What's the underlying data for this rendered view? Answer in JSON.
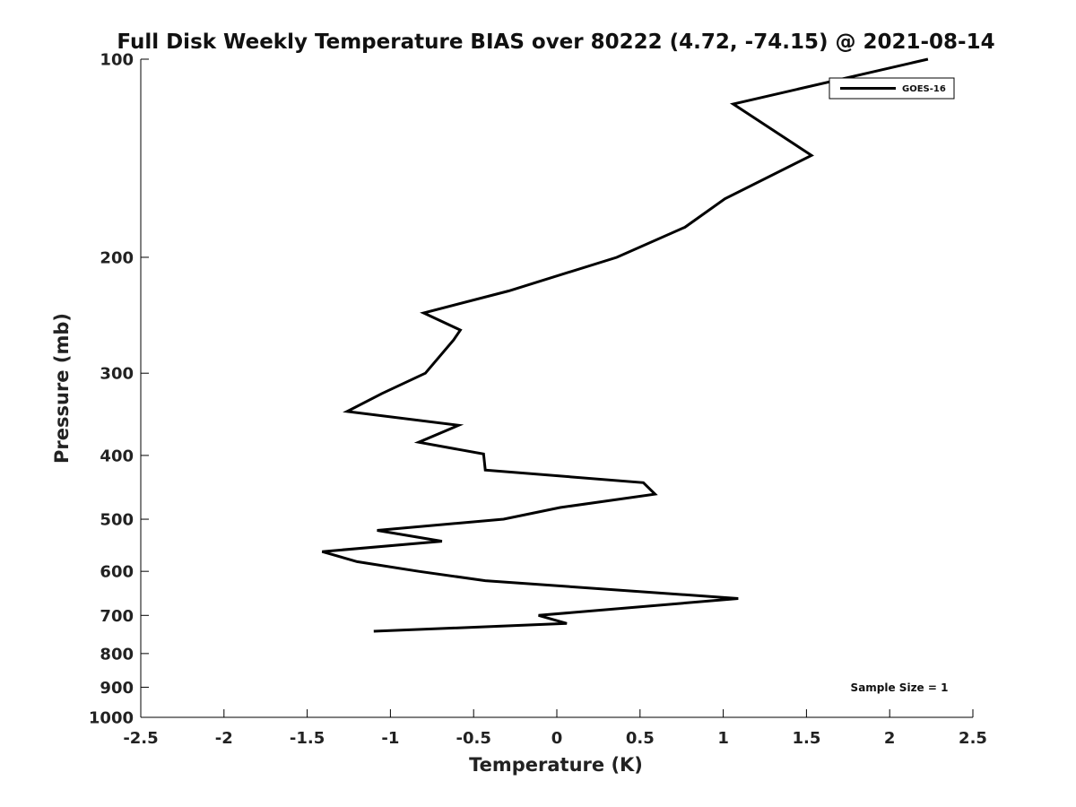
{
  "chart_data": {
    "type": "line",
    "title": "Full Disk Weekly Temperature BIAS over 80222 (4.72, -74.15) @ 2021-08-14",
    "xlabel": "Temperature (K)",
    "ylabel": "Pressure (mb)",
    "xlim": [
      -2.5,
      2.5
    ],
    "ylim": [
      1000,
      100
    ],
    "yscale": "log",
    "xticks": [
      -2.5,
      -2,
      -1.5,
      -1,
      -0.5,
      0,
      0.5,
      1,
      1.5,
      2,
      2.5
    ],
    "xtick_labels": [
      "-2.5",
      "-2",
      "-1.5",
      "-1",
      "-0.5",
      "0",
      "0.5",
      "1",
      "1.5",
      "2",
      "2.5"
    ],
    "yticks": [
      100,
      200,
      300,
      400,
      500,
      600,
      700,
      800,
      900,
      1000
    ],
    "ytick_labels": [
      "100",
      "200",
      "300",
      "400",
      "500",
      "600",
      "700",
      "800",
      "900",
      "1000"
    ],
    "grid": false,
    "legend_position": "top-right",
    "annotation": "Sample Size = 1",
    "series": [
      {
        "name": "GOES-16",
        "color": "#000000",
        "x": [
          2.23,
          1.06,
          1.53,
          1.01,
          0.77,
          0.36,
          -0.29,
          -0.8,
          -0.58,
          -0.62,
          -0.79,
          -1.05,
          -1.26,
          -0.59,
          -0.83,
          -0.44,
          -0.43,
          0.52,
          0.59,
          0.02,
          -0.32,
          -1.08,
          -0.69,
          -1.41,
          -1.2,
          -0.83,
          -0.43,
          1.09,
          -0.11,
          0.06,
          -1.1
        ],
        "y": [
          100,
          117,
          140,
          163,
          180,
          200,
          225,
          243,
          258,
          267,
          300,
          322,
          343,
          360,
          382,
          398,
          421,
          440,
          458,
          480,
          500,
          520,
          540,
          560,
          580,
          600,
          620,
          660,
          700,
          720,
          740
        ]
      }
    ]
  }
}
